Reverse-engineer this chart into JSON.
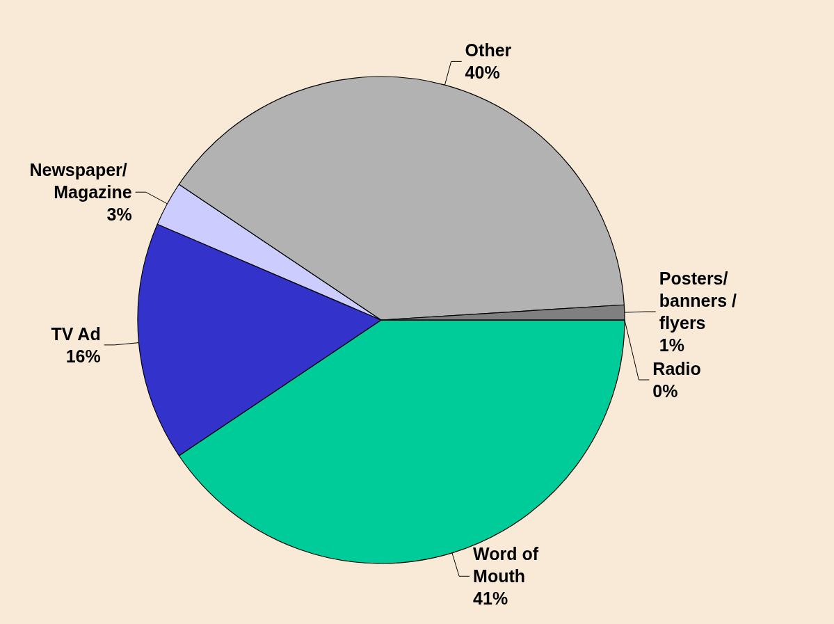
{
  "chart_data": {
    "type": "pie",
    "categories": [
      "Word of Mouth",
      "TV Ad",
      "Newspaper/ Magazine",
      "Other",
      "Posters/banners /flyers",
      "Radio"
    ],
    "values": [
      41,
      16,
      3,
      40,
      1,
      0
    ],
    "value_labels": [
      "41%",
      "16%",
      "3%",
      "40%",
      "1%",
      "0%"
    ],
    "colors": [
      "#00cc99",
      "#3333cc",
      "#ccccff",
      "#b2b2b2",
      "#808080",
      "#000000"
    ]
  }
}
